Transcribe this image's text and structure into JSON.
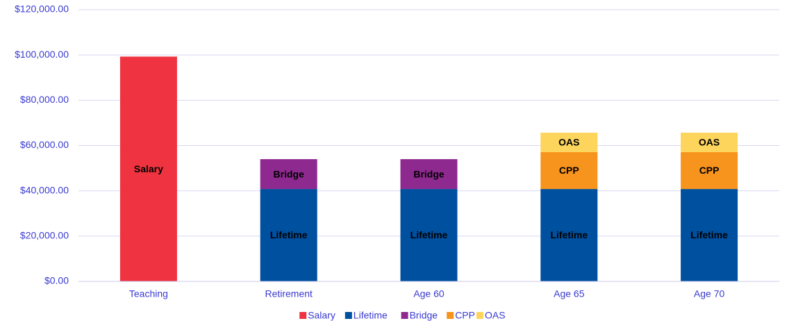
{
  "chart_data": {
    "type": "stacked_bar",
    "categories": [
      "Teaching",
      "Retirement",
      "Age 60",
      "Age 65",
      "Age 70"
    ],
    "series": [
      {
        "name": "Salary",
        "color": "#ef3340",
        "values": [
          99300,
          null,
          null,
          null,
          null
        ]
      },
      {
        "name": "Lifetime",
        "color": "#0050a0",
        "values": [
          null,
          40800,
          40800,
          40800,
          40800
        ]
      },
      {
        "name": "Bridge",
        "color": "#8e2a8f",
        "values": [
          null,
          13200,
          13200,
          null,
          null
        ]
      },
      {
        "name": "CPP",
        "color": "#f7941d",
        "values": [
          null,
          null,
          null,
          16300,
          16300
        ]
      },
      {
        "name": "OAS",
        "color": "#fdd55c",
        "values": [
          null,
          null,
          null,
          8600,
          8600
        ]
      }
    ],
    "ylim": [
      0,
      120000
    ],
    "yticks": [
      {
        "value": 0,
        "label": "$0.00"
      },
      {
        "value": 20000,
        "label": "$20,000.00"
      },
      {
        "value": 40000,
        "label": "$40,000.00"
      },
      {
        "value": 60000,
        "label": "$60,000.00"
      },
      {
        "value": 80000,
        "label": "$80,000.00"
      },
      {
        "value": 100000,
        "label": "$100,000.00"
      },
      {
        "value": 120000,
        "label": "$120,000.00"
      }
    ],
    "grid": true,
    "legend": "bottom"
  }
}
